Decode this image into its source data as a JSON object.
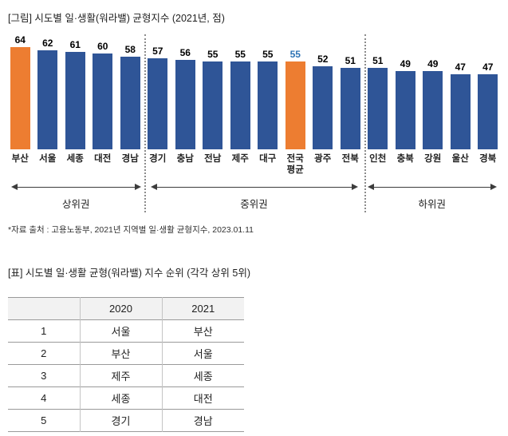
{
  "figure": {
    "title": "[그림] 시도별 일·생활(워라밸) 균형지수 (2021년, 점)",
    "source": "*자료 출처 : 고용노동부, 2021년 지역별 일·생활 균형지수, 2023.01.11"
  },
  "chart_data": {
    "type": "bar",
    "title": "시도별 일·생활(워라밸) 균형지수 (2021년, 점)",
    "categories": [
      "부산",
      "서울",
      "세종",
      "대전",
      "경남",
      "경기",
      "충남",
      "전남",
      "제주",
      "대구",
      "전국평균",
      "광주",
      "전북",
      "인천",
      "충북",
      "강원",
      "울산",
      "경북"
    ],
    "values": [
      64,
      62,
      61,
      60,
      58,
      57,
      56,
      55,
      55,
      55,
      55,
      52,
      51,
      51,
      49,
      49,
      47,
      47
    ],
    "bar_color": "#2F5597",
    "highlight_color": "#ED7D31",
    "highlight_indices": [
      0,
      10
    ],
    "value_label_colors": {
      "10": "#2E74B5"
    },
    "groups": [
      {
        "label": "상위권",
        "span": 5
      },
      {
        "label": "중위권",
        "span": 8
      },
      {
        "label": "하위권",
        "span": 5
      }
    ],
    "ylim": [
      0,
      70
    ],
    "grid": false,
    "legend": "none",
    "value_labels": true
  },
  "table": {
    "title": "[표] 시도별 일·생활 균형(워라밸) 지수 순위 (각각 상위 5위)",
    "headers": [
      "",
      "2020",
      "2021"
    ],
    "rows": [
      [
        "1",
        "서울",
        "부산"
      ],
      [
        "2",
        "부산",
        "서울"
      ],
      [
        "3",
        "제주",
        "세종"
      ],
      [
        "4",
        "세종",
        "대전"
      ],
      [
        "5",
        "경기",
        "경남"
      ]
    ]
  }
}
